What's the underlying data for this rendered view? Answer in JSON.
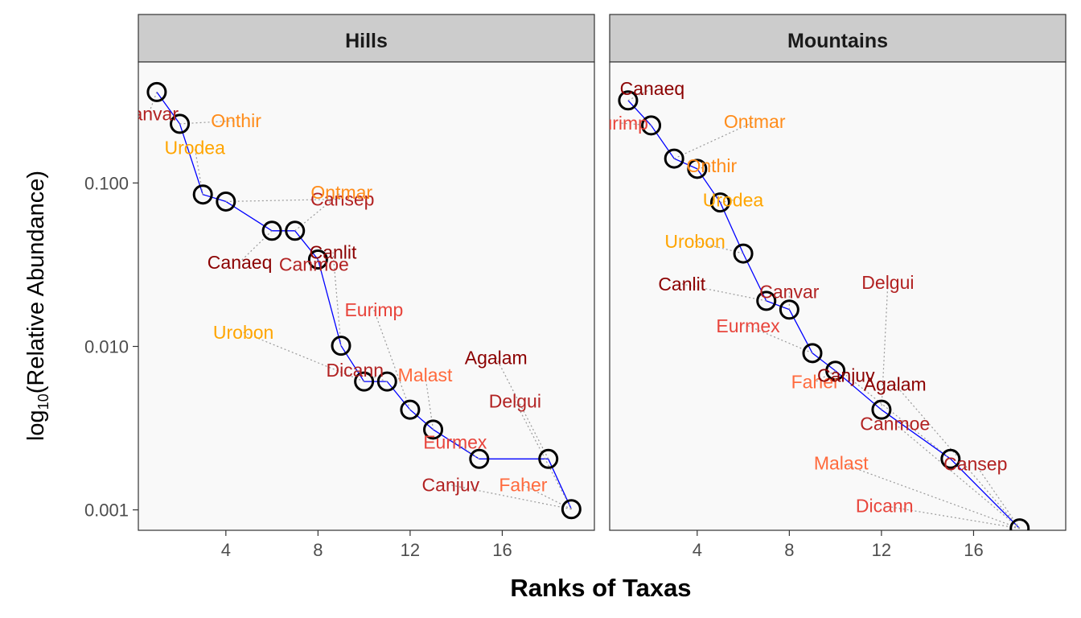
{
  "chart_data": {
    "type": "scatter",
    "title": "",
    "xlabel": "Ranks of Taxas",
    "ylabel_main": "log",
    "ylabel_sub": "10",
    "ylabel_rest": "(Relative Abundance)",
    "y_scale": "log10",
    "x_ticks": [
      4,
      8,
      12,
      16
    ],
    "x_tick_labels": [
      "4",
      "8",
      "12",
      "16"
    ],
    "y_ticks": [
      0.001,
      0.01,
      0.1
    ],
    "y_tick_labels": [
      "0.001",
      "0.010",
      "0.100"
    ],
    "xlim": [
      0.2,
      20.0
    ],
    "ylim": [
      0.00075,
      0.55
    ],
    "line_color": "#0000ff",
    "marker": "open-circle",
    "guide_style": "dotted-gray",
    "colors": {
      "dark_red": "#8b0000",
      "red": "#b22222",
      "tomato": "#e8453c",
      "coral": "#ff6a3d",
      "orange": "#ff8c1a",
      "gold": "#ffa500"
    },
    "panels": [
      {
        "strip": "Hills",
        "points": [
          {
            "rank": 1,
            "value": 0.36,
            "label": "Canvar",
            "color": "#b22222"
          },
          {
            "rank": 2,
            "value": 0.23,
            "label": "Onthir",
            "color": "#ff8c1a"
          },
          {
            "rank": 3,
            "value": 0.085,
            "label": "Urodea",
            "color": "#ffa500"
          },
          {
            "rank": 4,
            "value": 0.077,
            "label": "Cansep",
            "color": "#b22222"
          },
          {
            "rank": 6,
            "value": 0.051,
            "label": "Canaeq",
            "color": "#8b0000"
          },
          {
            "rank": 7,
            "value": 0.051,
            "label": "Ontmar",
            "color": "#ff8c1a"
          },
          {
            "rank": 8,
            "value": 0.034,
            "label": "Canmoe",
            "color": "#b22222"
          },
          {
            "rank": 9,
            "value": 0.0101,
            "label": "Canlit",
            "color": "#8b0000"
          },
          {
            "rank": 10,
            "value": 0.0061,
            "label": "Urobon",
            "color": "#ffa500"
          },
          {
            "rank": 11,
            "value": 0.0061,
            "label": "Dicann",
            "color": "#b22222"
          },
          {
            "rank": 12,
            "value": 0.0041,
            "label": "Eurimp",
            "color": "#e8453c"
          },
          {
            "rank": 13,
            "value": 0.0031,
            "label": "Malast",
            "color": "#ff6a3d"
          },
          {
            "rank": 15,
            "value": 0.00205,
            "label": "Eurmex",
            "color": "#e8453c"
          },
          {
            "rank": 18,
            "value": 0.00205,
            "label": "Agalam",
            "color": "#8b0000"
          },
          {
            "rank": 19,
            "value": 0.00101,
            "label": "Canjuv",
            "color": "#b22222"
          },
          {
            "rank": 19,
            "value": 0.00101,
            "label": "Delgui",
            "color": "#b22222"
          },
          {
            "rank": 19,
            "value": 0.00101,
            "label": "Faher",
            "color": "#ff6a3d"
          }
        ]
      },
      {
        "strip": "Mountains",
        "points": [
          {
            "rank": 1,
            "value": 0.32,
            "label": "Canaeq",
            "color": "#8b0000"
          },
          {
            "rank": 2,
            "value": 0.225,
            "label": "Eurimp",
            "color": "#e8453c"
          },
          {
            "rank": 3,
            "value": 0.141,
            "label": "Ontmar",
            "color": "#ff8c1a"
          },
          {
            "rank": 4,
            "value": 0.122,
            "label": "Onthir",
            "color": "#ff8c1a"
          },
          {
            "rank": 5,
            "value": 0.076,
            "label": "Urodea",
            "color": "#ffa500"
          },
          {
            "rank": 6,
            "value": 0.037,
            "label": "Urobon",
            "color": "#ffa500"
          },
          {
            "rank": 7,
            "value": 0.019,
            "label": "Canlit",
            "color": "#8b0000"
          },
          {
            "rank": 8,
            "value": 0.0168,
            "label": "Canvar",
            "color": "#b22222"
          },
          {
            "rank": 9,
            "value": 0.0091,
            "label": "Eurmex",
            "color": "#e8453c"
          },
          {
            "rank": 10,
            "value": 0.0071,
            "label": "Faher",
            "color": "#ff6a3d"
          },
          {
            "rank": 12,
            "value": 0.0041,
            "label": "Delgui",
            "color": "#b22222"
          },
          {
            "rank": 15,
            "value": 0.00205,
            "label": "Canjuv",
            "color": "#8b0000"
          },
          {
            "rank": 18,
            "value": 0.00077,
            "label": "Agalam",
            "color": "#8b0000"
          },
          {
            "rank": 18,
            "value": 0.00077,
            "label": "Canmoe",
            "color": "#b22222"
          },
          {
            "rank": 18,
            "value": 0.00077,
            "label": "Malast",
            "color": "#ff6a3d"
          },
          {
            "rank": 18,
            "value": 0.00077,
            "label": "Cansep",
            "color": "#b22222"
          },
          {
            "rank": 18,
            "value": 0.00077,
            "label": "Dicann",
            "color": "#e8453c"
          }
        ]
      }
    ]
  }
}
